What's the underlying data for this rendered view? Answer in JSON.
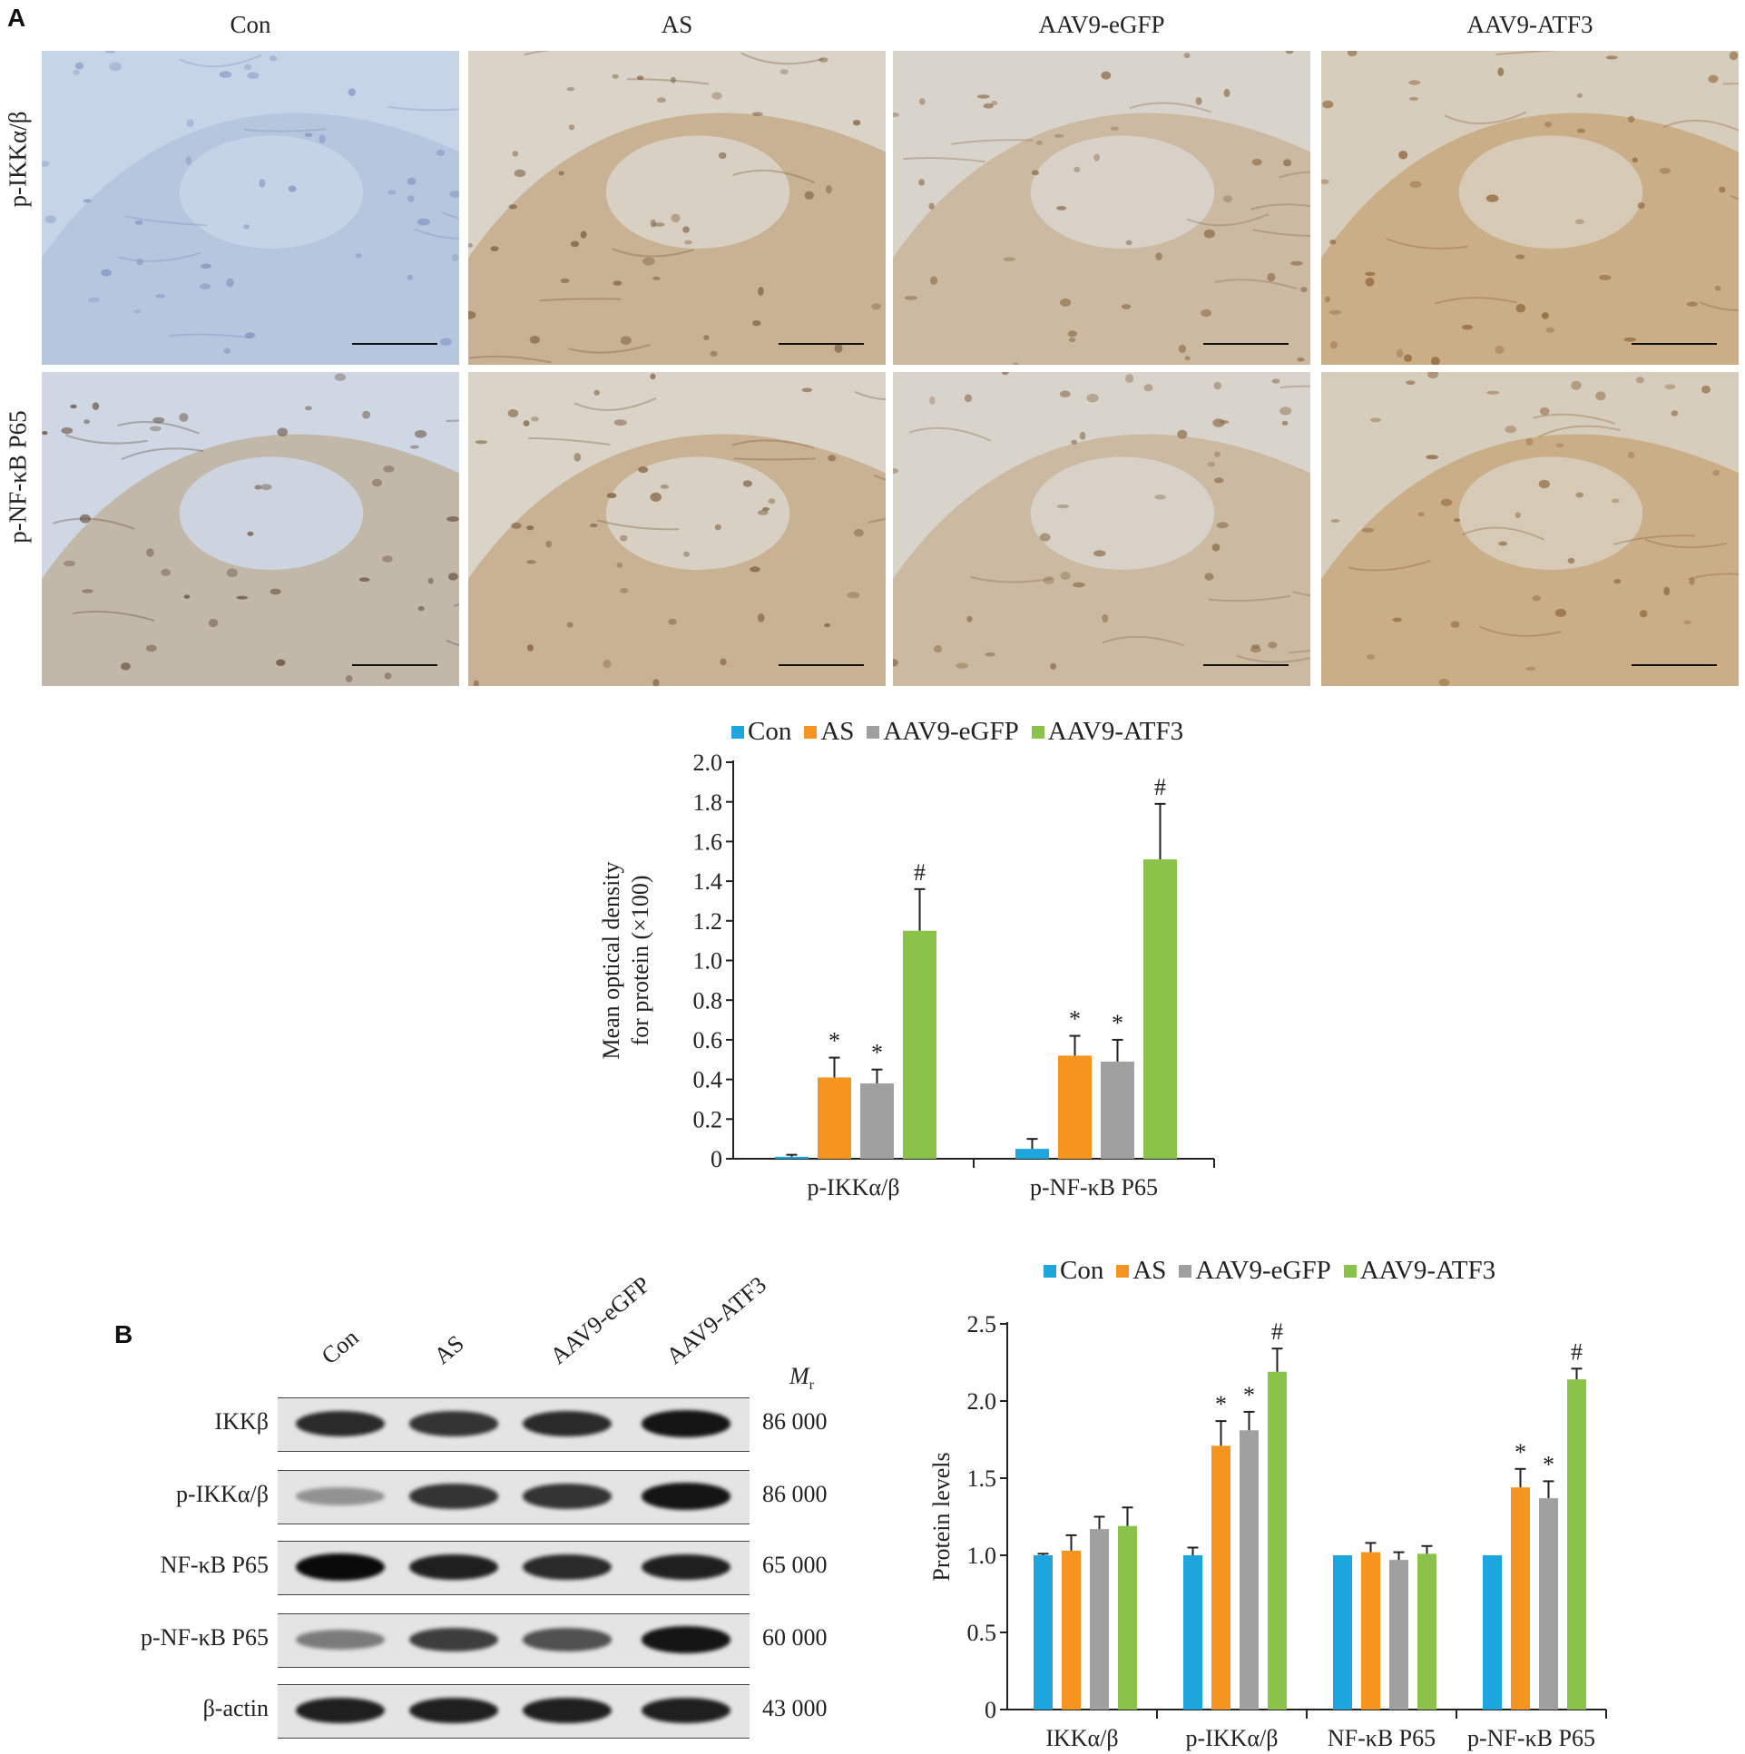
{
  "panel_a": {
    "letter": "A",
    "columns": [
      "Con",
      "AS",
      "AAV9-eGFP",
      "AAV9-ATF3"
    ],
    "rows": [
      "p-IKKα/β",
      "p-NF-κB P65"
    ]
  },
  "panel_b": {
    "letter": "B",
    "lanes": [
      "Con",
      "AS",
      "AAV9-eGFP",
      "AAV9-ATF3"
    ],
    "mr_header_main": "M",
    "mr_header_sub": "r",
    "blots": [
      {
        "label": "IKKβ",
        "mr": "86 000",
        "intensity": [
          0.85,
          0.8,
          0.85,
          0.95
        ]
      },
      {
        "label": "p-IKKα/β",
        "mr": "86 000",
        "intensity": [
          0.25,
          0.8,
          0.8,
          0.95
        ]
      },
      {
        "label": "NF-κB P65",
        "mr": "65 000",
        "intensity": [
          1.0,
          0.9,
          0.85,
          0.9
        ]
      },
      {
        "label": "p-NF-κB P65",
        "mr": "60 000",
        "intensity": [
          0.4,
          0.75,
          0.65,
          0.95
        ]
      },
      {
        "label": "β-actin",
        "mr": "43 000",
        "intensity": [
          0.9,
          0.9,
          0.9,
          0.9
        ]
      }
    ]
  },
  "colors": {
    "Con": "#1da6de",
    "AS": "#f5941f",
    "AAV9-eGFP": "#a0a0a0",
    "AAV9-ATF3": "#8bc34a"
  },
  "chart_data": [
    {
      "type": "bar",
      "categories": [
        "p-IKKα/β",
        "p-NF-κB P65"
      ],
      "series": [
        {
          "name": "Con",
          "values": [
            0.01,
            0.05
          ],
          "errors": [
            0.01,
            0.05
          ],
          "marks": [
            "",
            ""
          ]
        },
        {
          "name": "AS",
          "values": [
            0.41,
            0.52
          ],
          "errors": [
            0.1,
            0.1
          ],
          "marks": [
            "*",
            "*"
          ]
        },
        {
          "name": "AAV9-eGFP",
          "values": [
            0.38,
            0.49
          ],
          "errors": [
            0.07,
            0.11
          ],
          "marks": [
            "*",
            "*"
          ]
        },
        {
          "name": "AAV9-ATF3",
          "values": [
            1.15,
            1.51
          ],
          "errors": [
            0.21,
            0.28
          ],
          "marks": [
            "#",
            "#"
          ]
        }
      ],
      "ylabel_line1": "Mean optical density",
      "ylabel_line2": "for protein (×100)",
      "ylim": [
        0,
        2.0
      ],
      "yticks": [
        "0",
        "0.2",
        "0.4",
        "0.6",
        "0.8",
        "1.0",
        "1.2",
        "1.4",
        "1.6",
        "1.8",
        "2.0"
      ],
      "legend_position": "top"
    },
    {
      "type": "bar",
      "categories": [
        "IKKα/β",
        "p-IKKα/β",
        "NF-κB P65",
        "p-NF-κB P65"
      ],
      "series": [
        {
          "name": "Con",
          "values": [
            1.0,
            1.0,
            1.0,
            1.0
          ],
          "errors": [
            0.01,
            0.05,
            0,
            0
          ],
          "marks": [
            "",
            "",
            "",
            ""
          ]
        },
        {
          "name": "AS",
          "values": [
            1.03,
            1.71,
            1.02,
            1.44
          ],
          "errors": [
            0.1,
            0.16,
            0.06,
            0.12
          ],
          "marks": [
            "",
            "*",
            "",
            "*"
          ]
        },
        {
          "name": "AAV9-eGFP",
          "values": [
            1.17,
            1.81,
            0.97,
            1.37
          ],
          "errors": [
            0.08,
            0.12,
            0.05,
            0.11
          ],
          "marks": [
            "",
            "*",
            "",
            "*"
          ]
        },
        {
          "name": "AAV9-ATF3",
          "values": [
            1.19,
            2.19,
            1.01,
            2.14
          ],
          "errors": [
            0.12,
            0.15,
            0.05,
            0.07
          ],
          "marks": [
            "",
            "#",
            "",
            "#"
          ]
        }
      ],
      "ylabel": "Protein levels",
      "ylim": [
        0,
        2.5
      ],
      "yticks": [
        "0",
        "0.5",
        "1.0",
        "1.5",
        "2.0",
        "2.5"
      ],
      "legend_position": "top"
    }
  ]
}
